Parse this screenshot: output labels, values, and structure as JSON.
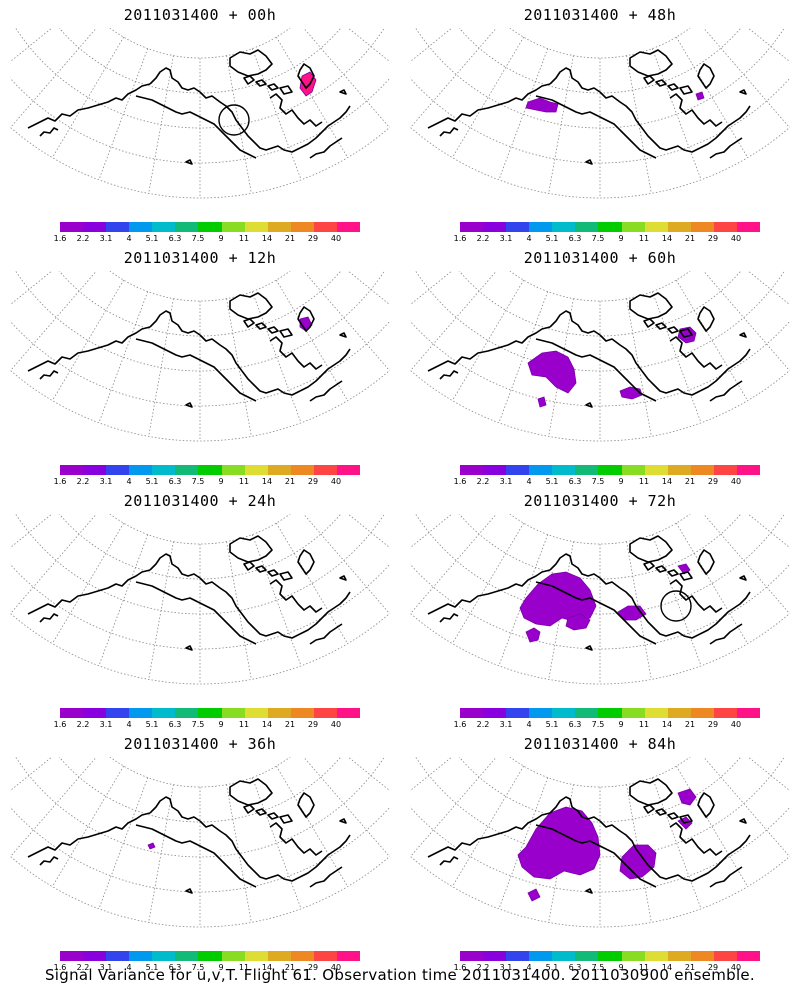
{
  "colorbar": {
    "colors": [
      "#9900cc",
      "#8800dd",
      "#3344ee",
      "#0099ee",
      "#00bbcc",
      "#11bb77",
      "#00cc00",
      "#88dd22",
      "#dddd33",
      "#ddaa22",
      "#ee8822",
      "#ff4444",
      "#ff1188"
    ],
    "ticks": [
      "1.6",
      "2.2",
      "3.1",
      "4",
      "5.1",
      "6.3",
      "7.5",
      "9",
      "11",
      "14",
      "21",
      "29",
      "40"
    ]
  },
  "panels": [
    {
      "title": "2011031400 + 00h",
      "blobs": "t0",
      "circle": true
    },
    {
      "title": "2011031400 + 48h",
      "blobs": "t48",
      "circle": false
    },
    {
      "title": "2011031400 + 12h",
      "blobs": "t12",
      "circle": false
    },
    {
      "title": "2011031400 + 60h",
      "blobs": "t60",
      "circle": false
    },
    {
      "title": "2011031400 + 24h",
      "blobs": "t24",
      "circle": false
    },
    {
      "title": "2011031400 + 72h",
      "blobs": "t72",
      "circle": true
    },
    {
      "title": "2011031400 + 36h",
      "blobs": "t36",
      "circle": false
    },
    {
      "title": "2011031400 + 84h",
      "blobs": "t84",
      "circle": false
    }
  ],
  "footer": "Signal Variance for u,v,T. Flight 61. Observation time 2011031400. 2011030900 ensemble."
}
